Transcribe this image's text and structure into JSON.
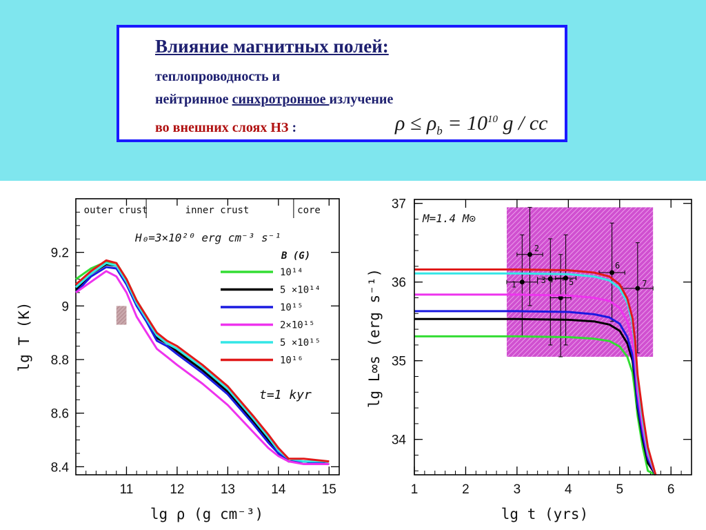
{
  "title": {
    "heading": "Влияние магнитных полей:",
    "line2": "теплопроводность и",
    "line3_a": "нейтринное ",
    "line3_u": "синхротронное ",
    "line3_b": "излучение",
    "line4": "во внешних слоях НЗ",
    "line4_colon": " :",
    "formula": "ρ ≤ ρ_b = 10^10 g / cc"
  },
  "colors": {
    "band": "#7fe6ee",
    "box_border": "#1a1aff",
    "hatch": "#c030c0",
    "B1e14": "#33dd33",
    "B5e14": "#000000",
    "B1e15": "#1a1ae0",
    "B2e15": "#ee33ee",
    "B5e15": "#33e6e6",
    "B1e16": "#e01a1a"
  },
  "chart_data": [
    {
      "type": "line",
      "xlabel": "lg ρ  (g cm⁻³)",
      "ylabel": "lg T  (K)",
      "xlim": [
        10,
        15.2
      ],
      "ylim": [
        8.37,
        9.4
      ],
      "xticks": [
        11,
        12,
        13,
        14,
        15
      ],
      "yticks": [
        8.4,
        8.6,
        8.8,
        9.0,
        9.2
      ],
      "ytick_labels": [
        "8.4",
        "8.6",
        "8.8",
        "9",
        "9.2"
      ],
      "regions": [
        {
          "label": "outer crust",
          "x_start": 10,
          "x_end": 10.6
        },
        {
          "label": "inner crust",
          "x_start": 10.6,
          "x_end": 14.3
        },
        {
          "label": "core",
          "x_start": 14.3,
          "x_end": 15.2
        }
      ],
      "annotation": "H₀=3×10²⁰ erg cm⁻³ s⁻¹",
      "time_label": "t=1 kyr",
      "legend_title": "B (G)",
      "legend_placement": "right",
      "shaded_rect": {
        "x": [
          10.8,
          11.0
        ],
        "y": [
          8.93,
          9.0
        ]
      },
      "x": [
        10.0,
        10.3,
        10.6,
        10.8,
        11.0,
        11.2,
        11.4,
        11.6,
        11.8,
        12.0,
        12.5,
        13.0,
        13.5,
        13.8,
        14.0,
        14.2,
        14.5,
        15.0
      ],
      "series": [
        {
          "name": "10¹⁴",
          "color_key": "B1e14",
          "values": [
            9.1,
            9.14,
            9.165,
            9.16,
            9.1,
            9.02,
            8.96,
            8.88,
            8.86,
            8.84,
            8.76,
            8.68,
            8.57,
            8.5,
            8.45,
            8.42,
            8.42,
            8.41
          ]
        },
        {
          "name": "5 ×10¹⁴",
          "color_key": "B5e14",
          "values": [
            9.06,
            9.12,
            9.155,
            9.15,
            9.09,
            9.01,
            8.95,
            8.88,
            8.86,
            8.83,
            8.76,
            8.68,
            8.57,
            8.5,
            8.45,
            8.42,
            8.42,
            8.41
          ]
        },
        {
          "name": "10¹⁵",
          "color_key": "B1e15",
          "values": [
            9.05,
            9.11,
            9.145,
            9.14,
            9.08,
            9.0,
            8.94,
            8.87,
            8.85,
            8.82,
            8.75,
            8.67,
            8.56,
            8.49,
            8.45,
            8.42,
            8.42,
            8.41
          ]
        },
        {
          "name": "2×10¹⁵",
          "color_key": "B2e15",
          "values": [
            9.05,
            9.09,
            9.13,
            9.11,
            9.05,
            8.96,
            8.9,
            8.84,
            8.81,
            8.78,
            8.71,
            8.63,
            8.53,
            8.47,
            8.44,
            8.42,
            8.41,
            8.41
          ]
        },
        {
          "name": "5 ×10¹⁵",
          "color_key": "B5e15",
          "values": [
            9.07,
            9.12,
            9.16,
            9.15,
            9.09,
            9.01,
            8.95,
            8.89,
            8.86,
            8.84,
            8.77,
            8.69,
            8.58,
            8.51,
            8.46,
            8.43,
            8.42,
            8.42
          ]
        },
        {
          "name": "10¹⁶",
          "color_key": "B1e16",
          "values": [
            9.08,
            9.13,
            9.17,
            9.16,
            9.1,
            9.02,
            8.96,
            8.9,
            8.87,
            8.85,
            8.78,
            8.7,
            8.59,
            8.52,
            8.47,
            8.43,
            8.43,
            8.42
          ]
        }
      ]
    },
    {
      "type": "line",
      "xlabel": "lg t   (yrs)",
      "ylabel": "lg L∞s  (erg s⁻¹)",
      "xlim": [
        1,
        6.4
      ],
      "ylim": [
        33.55,
        37.05
      ],
      "xticks": [
        1,
        2,
        3,
        4,
        5,
        6
      ],
      "yticks": [
        34,
        35,
        36,
        37
      ],
      "annotation": "M=1.4 M⊙",
      "hatched_region": {
        "x": [
          2.8,
          5.65
        ],
        "y": [
          35.05,
          36.95
        ]
      },
      "observations": [
        {
          "label": "1",
          "x": 3.1,
          "y": 36.0,
          "xerr": [
            2.8,
            3.4
          ],
          "yerr": [
            35.3,
            36.6
          ]
        },
        {
          "label": "2",
          "x": 3.25,
          "y": 36.35,
          "xerr": [
            3.0,
            3.5
          ],
          "yerr": [
            35.7,
            36.95
          ]
        },
        {
          "label": "3",
          "x": 3.65,
          "y": 36.04,
          "xerr": [
            3.4,
            3.9
          ],
          "yerr": [
            35.2,
            36.55
          ]
        },
        {
          "label": "4",
          "x": 3.85,
          "y": 35.8,
          "xerr": [
            3.65,
            4.05
          ],
          "yerr": [
            35.05,
            36.35
          ]
        },
        {
          "label": "5",
          "x": 3.95,
          "y": 36.05,
          "xerr": [
            3.75,
            4.15
          ],
          "yerr": [
            35.2,
            36.6
          ]
        },
        {
          "label": "6",
          "x": 4.85,
          "y": 36.12,
          "xerr": [
            4.6,
            5.1
          ],
          "yerr": [
            35.5,
            36.75
          ]
        },
        {
          "label": "7",
          "x": 5.35,
          "y": 35.92,
          "xerr": [
            5.05,
            5.65
          ],
          "yerr": [
            35.1,
            36.5
          ]
        }
      ],
      "x": [
        1,
        2,
        3,
        4,
        4.5,
        4.8,
        5.0,
        5.15,
        5.25,
        5.3,
        5.35,
        5.45,
        5.55,
        5.7
      ],
      "series": [
        {
          "name": "10¹⁴",
          "color_key": "B1e14",
          "values": [
            35.31,
            35.31,
            35.31,
            35.3,
            35.28,
            35.25,
            35.18,
            35.05,
            34.85,
            34.6,
            34.3,
            33.9,
            33.6,
            33.55
          ]
        },
        {
          "name": "5 ×10¹⁴",
          "color_key": "B5e14",
          "values": [
            35.53,
            35.53,
            35.53,
            35.52,
            35.5,
            35.46,
            35.38,
            35.22,
            35.0,
            34.75,
            34.4,
            34.0,
            33.7,
            33.55
          ]
        },
        {
          "name": "10¹⁵",
          "color_key": "B1e15",
          "values": [
            35.63,
            35.63,
            35.63,
            35.62,
            35.59,
            35.55,
            35.47,
            35.3,
            35.07,
            34.82,
            34.45,
            34.05,
            33.75,
            33.55
          ]
        },
        {
          "name": "2×10¹⁵",
          "color_key": "B2e15",
          "values": [
            35.84,
            35.84,
            35.84,
            35.83,
            35.8,
            35.76,
            35.67,
            35.5,
            35.26,
            35.0,
            34.6,
            34.15,
            33.8,
            33.55
          ]
        },
        {
          "name": "5 ×10¹⁵",
          "color_key": "B5e15",
          "values": [
            36.11,
            36.11,
            36.11,
            36.1,
            36.07,
            36.02,
            35.92,
            35.74,
            35.48,
            35.2,
            34.75,
            34.25,
            33.85,
            33.55
          ]
        },
        {
          "name": "10¹⁶",
          "color_key": "B1e16",
          "values": [
            36.16,
            36.16,
            36.16,
            36.15,
            36.12,
            36.07,
            35.97,
            35.79,
            35.54,
            35.26,
            34.82,
            34.32,
            33.9,
            33.55
          ]
        }
      ]
    }
  ]
}
